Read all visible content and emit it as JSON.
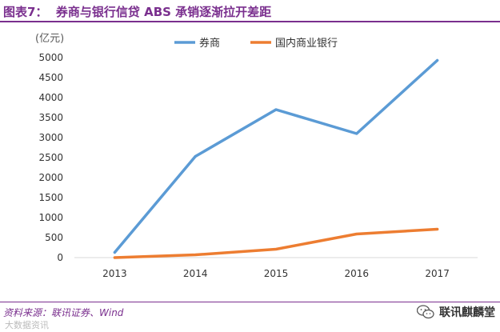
{
  "header": {
    "figure_label": "图表7：",
    "title": "券商与银行信贷 ABS 承销逐渐拉开差距"
  },
  "colors": {
    "accent": "#7a2f8e",
    "series_brokers": "#5b9bd5",
    "series_banks": "#ed7d31",
    "axis": "#d9d9d9",
    "text": "#333333"
  },
  "chart_data": {
    "type": "line",
    "title": "",
    "ylabel": "(亿元)",
    "xlabel": "",
    "categories": [
      "2013",
      "2014",
      "2015",
      "2016",
      "2017"
    ],
    "yticks": [
      "0",
      "500",
      "1000",
      "1500",
      "2000",
      "2500",
      "3000",
      "3500",
      "4000",
      "4500",
      "5000"
    ],
    "ylim": [
      0,
      5000
    ],
    "grid": false,
    "legend_position": "top",
    "series": [
      {
        "name": "券商",
        "values": [
          130,
          2530,
          3700,
          3100,
          4930
        ]
      },
      {
        "name": "国内商业银行",
        "values": [
          0,
          70,
          210,
          590,
          710
        ]
      }
    ]
  },
  "footer": {
    "source": "资料来源：联讯证券、Wind",
    "brand": "联讯麒麟堂",
    "watermark": "大数据资讯"
  }
}
